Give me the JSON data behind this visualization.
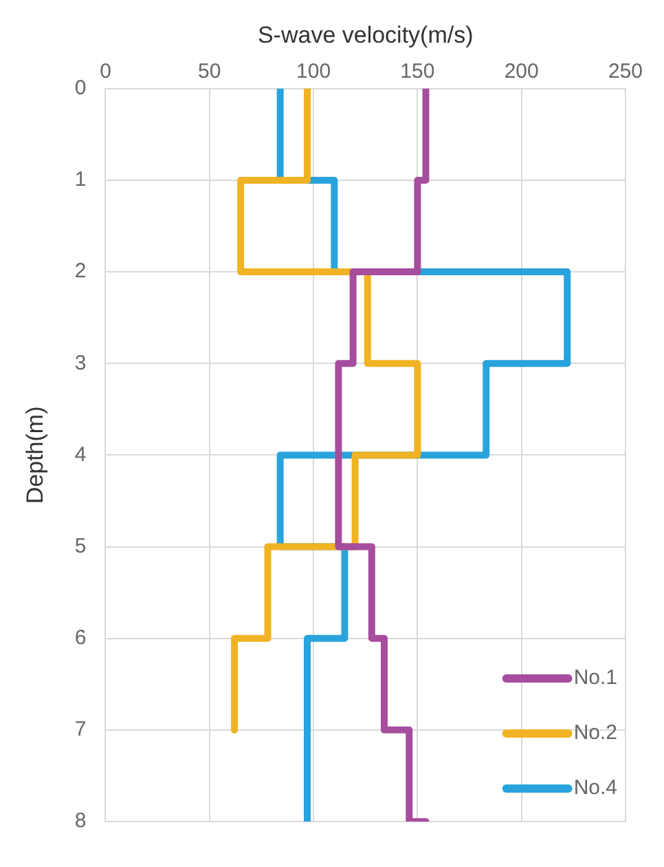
{
  "chart_data": {
    "type": "line",
    "xlabel": "S-wave velocity(m/s)",
    "ylabel": "Depth(m)",
    "xlim": [
      0,
      250
    ],
    "xticks": [
      0,
      50,
      100,
      150,
      200,
      250
    ],
    "ylim": [
      8,
      0
    ],
    "yticks": [
      0,
      1,
      2,
      3,
      4,
      5,
      6,
      7,
      8
    ],
    "grid": true,
    "legend": "bottom right",
    "marker": "none",
    "line_style": "solid",
    "series": [
      {
        "name": "No.1",
        "color": "#a64d9e",
        "x": [
          154,
          154,
          150,
          150,
          119,
          119,
          112,
          112,
          128,
          128,
          134,
          134,
          146,
          146,
          154
        ],
        "values": [
          0,
          1,
          1,
          2,
          2,
          3,
          3,
          5,
          5,
          6,
          6,
          7,
          7,
          8,
          8
        ]
      },
      {
        "name": "No.2",
        "color": "#f0b323",
        "x": [
          97,
          97,
          65,
          65,
          126,
          126,
          150,
          150,
          120,
          120,
          78,
          78,
          62,
          62
        ],
        "values": [
          0,
          1,
          1,
          2,
          2,
          3,
          3,
          4,
          4,
          5,
          5,
          6,
          6,
          7
        ]
      },
      {
        "name": "No.4",
        "color": "#29a3dc",
        "x": [
          84,
          84,
          110,
          110,
          222,
          222,
          183,
          183,
          84,
          84,
          115,
          115,
          97,
          97
        ],
        "values": [
          0,
          1,
          1,
          2,
          2,
          3,
          3,
          4,
          4,
          5,
          5,
          6,
          6,
          8
        ]
      }
    ]
  }
}
